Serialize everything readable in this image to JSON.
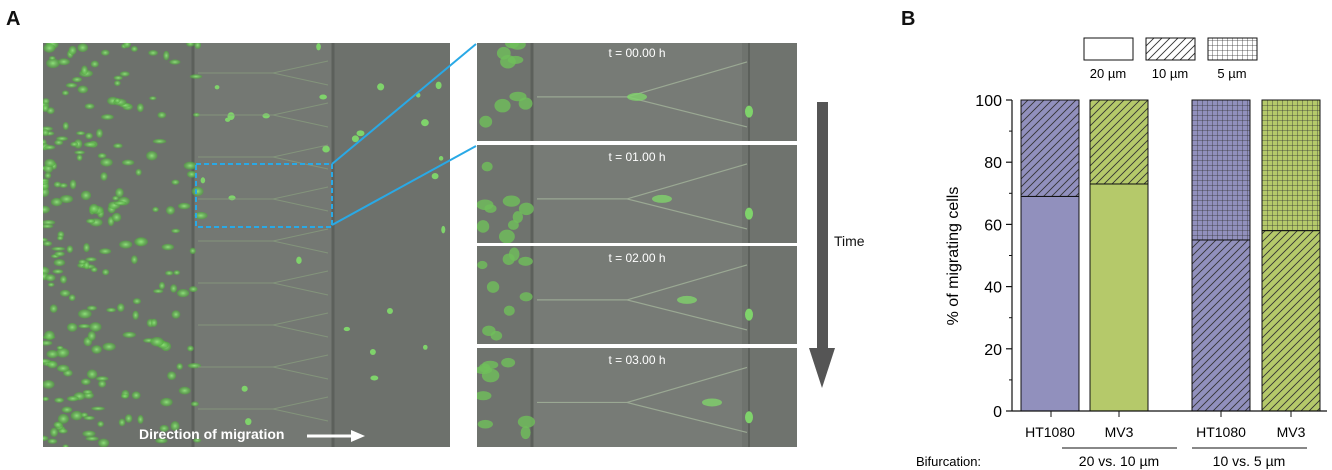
{
  "panel_a": {
    "letter": "A",
    "timepoints": [
      "t = 00.00 h",
      "t = 01.00 h",
      "t = 02.00 h",
      "t = 03.00 h"
    ],
    "time_label": "Time",
    "direction_label": "Direction of migration"
  },
  "panel_b": {
    "letter": "B",
    "bifurcation_label": "Bifurcation:"
  },
  "chart_data": {
    "type": "bar",
    "stacked": true,
    "ylabel": "% of migrating cells",
    "ylim": [
      0,
      100
    ],
    "yticks": [
      "0",
      "20",
      "40",
      "60",
      "80",
      "100"
    ],
    "categories": [
      "HT1080",
      "MV3",
      "HT1080",
      "MV3"
    ],
    "groups": [
      {
        "label": "20 vs. 10 µm",
        "categories": [
          "HT1080",
          "MV3"
        ]
      },
      {
        "label": "10 vs. 5 µm",
        "categories": [
          "HT1080",
          "MV3"
        ]
      }
    ],
    "legend": {
      "placement": "top",
      "entries": [
        {
          "label": "20 µm",
          "pattern": "none"
        },
        {
          "label": "10 µm",
          "pattern": "diagonal"
        },
        {
          "label": "5 µm",
          "pattern": "grid"
        }
      ]
    },
    "bars": [
      {
        "category": "HT1080",
        "color": "#9190bd",
        "segments": [
          {
            "channel": "20 µm",
            "value": 69
          },
          {
            "channel": "10 µm",
            "value": 31
          }
        ]
      },
      {
        "category": "MV3",
        "color": "#b5c96a",
        "segments": [
          {
            "channel": "20 µm",
            "value": 73
          },
          {
            "channel": "10 µm",
            "value": 27
          }
        ]
      },
      {
        "category": "HT1080",
        "color": "#9190bd",
        "segments": [
          {
            "channel": "10 µm",
            "value": 55
          },
          {
            "channel": "5 µm",
            "value": 45
          }
        ]
      },
      {
        "category": "MV3",
        "color": "#b5c96a",
        "segments": [
          {
            "channel": "10 µm",
            "value": 58
          },
          {
            "channel": "5 µm",
            "value": 42
          }
        ]
      }
    ],
    "colors": {
      "HT1080": "#9190bd",
      "MV3": "#b5c96a"
    }
  }
}
